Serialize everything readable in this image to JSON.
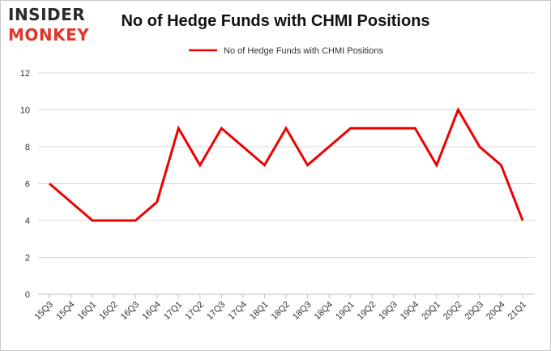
{
  "brand": {
    "logo_line1": "INSIDER",
    "logo_line2": "MONKEY",
    "logo_color_dark": "#2a2a2a",
    "logo_color_accent": "#e0372a"
  },
  "chart_data": {
    "type": "line",
    "title": "No of Hedge Funds with CHMI Positions",
    "xlabel": "",
    "ylabel": "",
    "categories": [
      "15Q3",
      "15Q4",
      "16Q1",
      "16Q2",
      "16Q3",
      "16Q4",
      "17Q1",
      "17Q2",
      "17Q3",
      "17Q4",
      "18Q1",
      "18Q2",
      "18Q3",
      "18Q4",
      "19Q1",
      "19Q2",
      "19Q3",
      "19Q4",
      "20Q1",
      "20Q2",
      "20Q3",
      "20Q4",
      "21Q1"
    ],
    "series": [
      {
        "name": "No of Hedge Funds with CHMI Positions",
        "color": "#ee0000",
        "values": [
          6,
          5,
          4,
          4,
          4,
          5,
          9,
          7,
          9,
          8,
          7,
          9,
          7,
          8,
          9,
          9,
          9,
          9,
          7,
          10,
          8,
          7,
          4
        ]
      }
    ],
    "ylim": [
      0,
      12
    ],
    "yticks": [
      0,
      2,
      4,
      6,
      8,
      10,
      12
    ],
    "grid": true,
    "legend_position": "top-center"
  }
}
